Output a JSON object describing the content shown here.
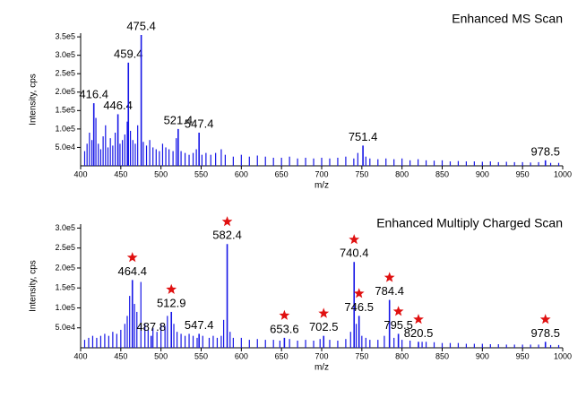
{
  "chart_data": [
    {
      "type": "spectrum",
      "title": "Enhanced MS Scan",
      "x_label": "m/z",
      "y_label": "Intensity, cps",
      "color": "#1515e6",
      "xlim": [
        400,
        1000
      ],
      "xticks": [
        400,
        450,
        500,
        550,
        600,
        650,
        700,
        750,
        800,
        850,
        900,
        950,
        1000
      ],
      "ylim": [
        0,
        360000
      ],
      "yticks": [
        {
          "value": 50000,
          "label": "5.0e4"
        },
        {
          "value": 100000,
          "label": "1.0e5"
        },
        {
          "value": 150000,
          "label": "1.5e5"
        },
        {
          "value": 200000,
          "label": "2.0e5"
        },
        {
          "value": 250000,
          "label": "2.5e5"
        },
        {
          "value": 300000,
          "label": "3.0e5"
        },
        {
          "value": 350000,
          "label": "3.5e5"
        }
      ],
      "peaks": {
        "x": [
          416.4,
          446.4,
          459.4,
          475.4,
          521.4,
          547.4,
          751.4,
          978.5
        ],
        "values": [
          170000,
          140000,
          280000,
          355000,
          100000,
          90000,
          55000,
          15000
        ],
        "starred": [
          false,
          false,
          false,
          false,
          false,
          false,
          false,
          false
        ]
      },
      "background": {
        "x": [
          405,
          408,
          411,
          414,
          419,
          422,
          425,
          428,
          431,
          434,
          437,
          440,
          443,
          449,
          452,
          455,
          458,
          462,
          465,
          468,
          471,
          478,
          482,
          486,
          490,
          494,
          498,
          502,
          506,
          510,
          515,
          519,
          525,
          530,
          535,
          540,
          544,
          551,
          556,
          562,
          568,
          575,
          580,
          590,
          600,
          610,
          620,
          630,
          640,
          650,
          660,
          670,
          680,
          690,
          700,
          710,
          720,
          730,
          740,
          745,
          755,
          760,
          770,
          780,
          790,
          800,
          810,
          820,
          830,
          840,
          850,
          860,
          870,
          880,
          890,
          900,
          910,
          920,
          930,
          940,
          950,
          960,
          970,
          985,
          995
        ],
        "values": [
          40000,
          60000,
          90000,
          70000,
          130000,
          60000,
          45000,
          80000,
          110000,
          50000,
          75000,
          55000,
          90000,
          60000,
          70000,
          85000,
          120000,
          95000,
          70000,
          60000,
          110000,
          65000,
          55000,
          70000,
          50000,
          45000,
          40000,
          60000,
          50000,
          45000,
          40000,
          75000,
          40000,
          35000,
          30000,
          35000,
          45000,
          30000,
          35000,
          30000,
          35000,
          45000,
          30000,
          25000,
          30000,
          25000,
          28000,
          25000,
          22000,
          22000,
          25000,
          20000,
          22000,
          20000,
          22000,
          20000,
          22000,
          25000,
          20000,
          35000,
          25000,
          20000,
          18000,
          20000,
          18000,
          20000,
          15000,
          18000,
          15000,
          14000,
          15000,
          12000,
          13000,
          12000,
          12000,
          11000,
          12000,
          10000,
          11000,
          10000,
          10000,
          9000,
          10000,
          8000,
          8000
        ]
      }
    },
    {
      "type": "spectrum",
      "title": "Enhanced Multiply Charged Scan",
      "x_label": "m/z",
      "y_label": "Intensity, cps",
      "color": "#1515e6",
      "xlim": [
        400,
        1000
      ],
      "xticks": [
        400,
        450,
        500,
        550,
        600,
        650,
        700,
        750,
        800,
        850,
        900,
        950,
        1000
      ],
      "ylim": [
        0,
        310000
      ],
      "yticks": [
        {
          "value": 50000,
          "label": "5.0e4"
        },
        {
          "value": 100000,
          "label": "1.0e5"
        },
        {
          "value": 150000,
          "label": "1.5e5"
        },
        {
          "value": 200000,
          "label": "2.0e5"
        },
        {
          "value": 250000,
          "label": "2.5e5"
        },
        {
          "value": 300000,
          "label": "3.0e5"
        }
      ],
      "peaks": {
        "x": [
          464.4,
          487.8,
          512.9,
          547.4,
          582.4,
          653.6,
          702.5,
          740.4,
          746.5,
          784.4,
          795.5,
          820.5,
          978.5
        ],
        "values": [
          170000,
          30000,
          90000,
          35000,
          260000,
          25000,
          30000,
          215000,
          80000,
          120000,
          35000,
          15000,
          15000
        ],
        "starred": [
          true,
          false,
          true,
          false,
          true,
          true,
          true,
          true,
          true,
          true,
          true,
          true,
          true
        ]
      },
      "background": {
        "x": [
          405,
          410,
          415,
          420,
          425,
          430,
          435,
          440,
          445,
          450,
          455,
          458,
          461,
          467,
          470,
          475,
          480,
          484,
          490,
          495,
          500,
          505,
          508,
          516,
          520,
          525,
          530,
          535,
          540,
          545,
          552,
          560,
          565,
          570,
          575,
          578,
          586,
          590,
          600,
          610,
          620,
          630,
          640,
          648,
          660,
          670,
          680,
          690,
          698,
          710,
          720,
          730,
          736,
          743,
          750,
          755,
          760,
          770,
          778,
          790,
          800,
          810,
          825,
          830,
          840,
          850,
          860,
          870,
          880,
          890,
          900,
          910,
          920,
          930,
          940,
          950,
          960,
          970,
          985,
          995
        ],
        "values": [
          20000,
          25000,
          30000,
          25000,
          30000,
          35000,
          30000,
          40000,
          35000,
          45000,
          60000,
          80000,
          130000,
          110000,
          90000,
          165000,
          60000,
          45000,
          50000,
          40000,
          60000,
          55000,
          80000,
          60000,
          40000,
          35000,
          30000,
          35000,
          30000,
          25000,
          30000,
          25000,
          30000,
          25000,
          30000,
          70000,
          40000,
          25000,
          25000,
          20000,
          22000,
          20000,
          20000,
          18000,
          22000,
          18000,
          20000,
          18000,
          22000,
          20000,
          18000,
          22000,
          40000,
          60000,
          30000,
          25000,
          20000,
          20000,
          30000,
          25000,
          20000,
          18000,
          15000,
          15000,
          14000,
          12000,
          12000,
          12000,
          10000,
          10000,
          10000,
          9000,
          9000,
          8000,
          8000,
          8000,
          8000,
          8000,
          7000,
          7000
        ]
      }
    }
  ]
}
